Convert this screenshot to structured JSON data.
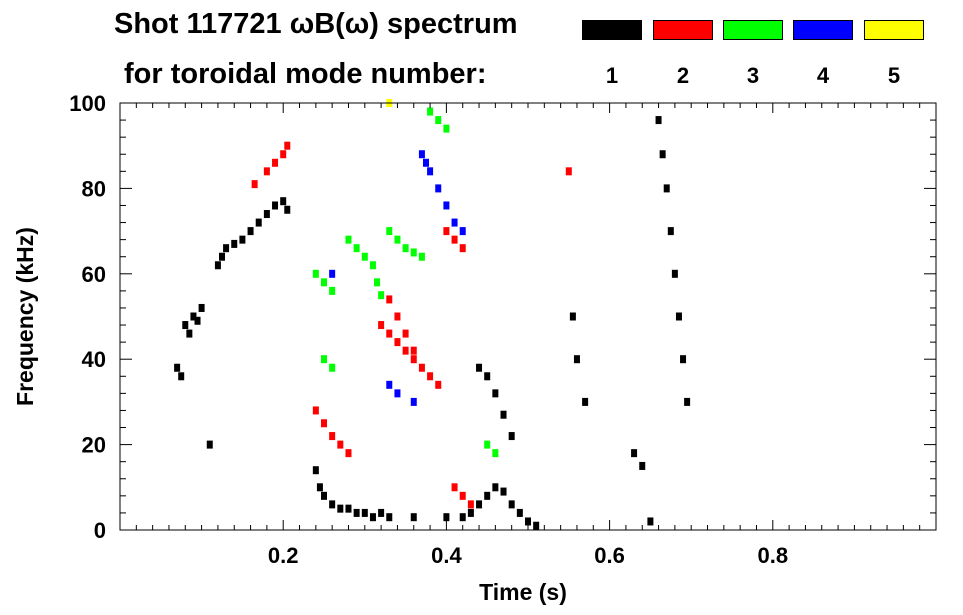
{
  "chart_data": {
    "type": "heatmap",
    "title": "Shot 117721 ωB(ω) spectrum",
    "subtitle": "for toroidal mode number:",
    "xlabel": "Time (s)",
    "ylabel": "Frequency (kHz)",
    "xlim": [
      0.0,
      1.0
    ],
    "ylim": [
      0,
      100
    ],
    "x_ticks": [
      0.2,
      0.4,
      0.6,
      0.8
    ],
    "x_tick_labels": [
      "0.2",
      "0.4",
      "0.6",
      "0.8"
    ],
    "y_ticks": [
      0,
      20,
      40,
      60,
      80,
      100
    ],
    "y_tick_labels": [
      "0",
      "20",
      "40",
      "60",
      "80",
      "100"
    ],
    "legend": {
      "placement": "top-right",
      "entries": [
        {
          "label": "1",
          "color": "#000000"
        },
        {
          "label": "2",
          "color": "#ff0000"
        },
        {
          "label": "3",
          "color": "#00ff00"
        },
        {
          "label": "4",
          "color": "#0000ff"
        },
        {
          "label": "5",
          "color": "#ffff00"
        }
      ]
    },
    "series": [
      {
        "mode": "1",
        "color": "#000000",
        "points": [
          [
            0.07,
            38
          ],
          [
            0.075,
            36
          ],
          [
            0.08,
            48
          ],
          [
            0.085,
            46
          ],
          [
            0.09,
            50
          ],
          [
            0.095,
            49
          ],
          [
            0.1,
            52
          ],
          [
            0.11,
            20
          ],
          [
            0.12,
            62
          ],
          [
            0.125,
            64
          ],
          [
            0.13,
            66
          ],
          [
            0.14,
            67
          ],
          [
            0.15,
            68
          ],
          [
            0.16,
            70
          ],
          [
            0.17,
            72
          ],
          [
            0.18,
            74
          ],
          [
            0.19,
            76
          ],
          [
            0.2,
            77
          ],
          [
            0.205,
            75
          ],
          [
            0.24,
            14
          ],
          [
            0.245,
            10
          ],
          [
            0.25,
            8
          ],
          [
            0.26,
            6
          ],
          [
            0.27,
            5
          ],
          [
            0.28,
            5
          ],
          [
            0.29,
            4
          ],
          [
            0.3,
            4
          ],
          [
            0.31,
            3
          ],
          [
            0.32,
            4
          ],
          [
            0.33,
            3
          ],
          [
            0.36,
            3
          ],
          [
            0.4,
            3
          ],
          [
            0.42,
            3
          ],
          [
            0.43,
            4
          ],
          [
            0.44,
            6
          ],
          [
            0.45,
            8
          ],
          [
            0.46,
            10
          ],
          [
            0.47,
            9
          ],
          [
            0.48,
            6
          ],
          [
            0.49,
            4
          ],
          [
            0.5,
            2
          ],
          [
            0.51,
            1
          ],
          [
            0.44,
            38
          ],
          [
            0.45,
            36
          ],
          [
            0.46,
            32
          ],
          [
            0.47,
            27
          ],
          [
            0.48,
            22
          ],
          [
            0.555,
            50
          ],
          [
            0.56,
            40
          ],
          [
            0.57,
            30
          ],
          [
            0.63,
            18
          ],
          [
            0.64,
            15
          ],
          [
            0.65,
            2
          ],
          [
            0.66,
            96
          ],
          [
            0.665,
            88
          ],
          [
            0.67,
            80
          ],
          [
            0.675,
            70
          ],
          [
            0.68,
            60
          ],
          [
            0.685,
            50
          ],
          [
            0.69,
            40
          ],
          [
            0.695,
            30
          ]
        ]
      },
      {
        "mode": "2",
        "color": "#ff0000",
        "points": [
          [
            0.165,
            81
          ],
          [
            0.18,
            84
          ],
          [
            0.19,
            86
          ],
          [
            0.2,
            88
          ],
          [
            0.205,
            90
          ],
          [
            0.24,
            28
          ],
          [
            0.25,
            25
          ],
          [
            0.26,
            22
          ],
          [
            0.27,
            20
          ],
          [
            0.28,
            18
          ],
          [
            0.32,
            48
          ],
          [
            0.33,
            46
          ],
          [
            0.34,
            44
          ],
          [
            0.35,
            42
          ],
          [
            0.36,
            40
          ],
          [
            0.37,
            38
          ],
          [
            0.38,
            36
          ],
          [
            0.39,
            34
          ],
          [
            0.33,
            54
          ],
          [
            0.34,
            50
          ],
          [
            0.35,
            46
          ],
          [
            0.36,
            42
          ],
          [
            0.4,
            70
          ],
          [
            0.41,
            68
          ],
          [
            0.42,
            66
          ],
          [
            0.55,
            84
          ],
          [
            0.41,
            10
          ],
          [
            0.42,
            8
          ],
          [
            0.43,
            6
          ]
        ]
      },
      {
        "mode": "3",
        "color": "#00ff00",
        "points": [
          [
            0.24,
            60
          ],
          [
            0.25,
            58
          ],
          [
            0.26,
            56
          ],
          [
            0.28,
            68
          ],
          [
            0.29,
            66
          ],
          [
            0.3,
            64
          ],
          [
            0.31,
            62
          ],
          [
            0.315,
            58
          ],
          [
            0.32,
            55
          ],
          [
            0.33,
            70
          ],
          [
            0.34,
            68
          ],
          [
            0.35,
            66
          ],
          [
            0.36,
            65
          ],
          [
            0.37,
            64
          ],
          [
            0.38,
            98
          ],
          [
            0.39,
            96
          ],
          [
            0.4,
            94
          ],
          [
            0.25,
            40
          ],
          [
            0.26,
            38
          ],
          [
            0.45,
            20
          ],
          [
            0.46,
            18
          ]
        ]
      },
      {
        "mode": "4",
        "color": "#0000ff",
        "points": [
          [
            0.37,
            88
          ],
          [
            0.375,
            86
          ],
          [
            0.38,
            84
          ],
          [
            0.39,
            80
          ],
          [
            0.4,
            76
          ],
          [
            0.41,
            72
          ],
          [
            0.42,
            70
          ],
          [
            0.26,
            60
          ],
          [
            0.33,
            34
          ],
          [
            0.34,
            32
          ],
          [
            0.36,
            30
          ]
        ]
      },
      {
        "mode": "5",
        "color": "#ffff00",
        "points": [
          [
            0.33,
            100
          ]
        ]
      }
    ]
  }
}
